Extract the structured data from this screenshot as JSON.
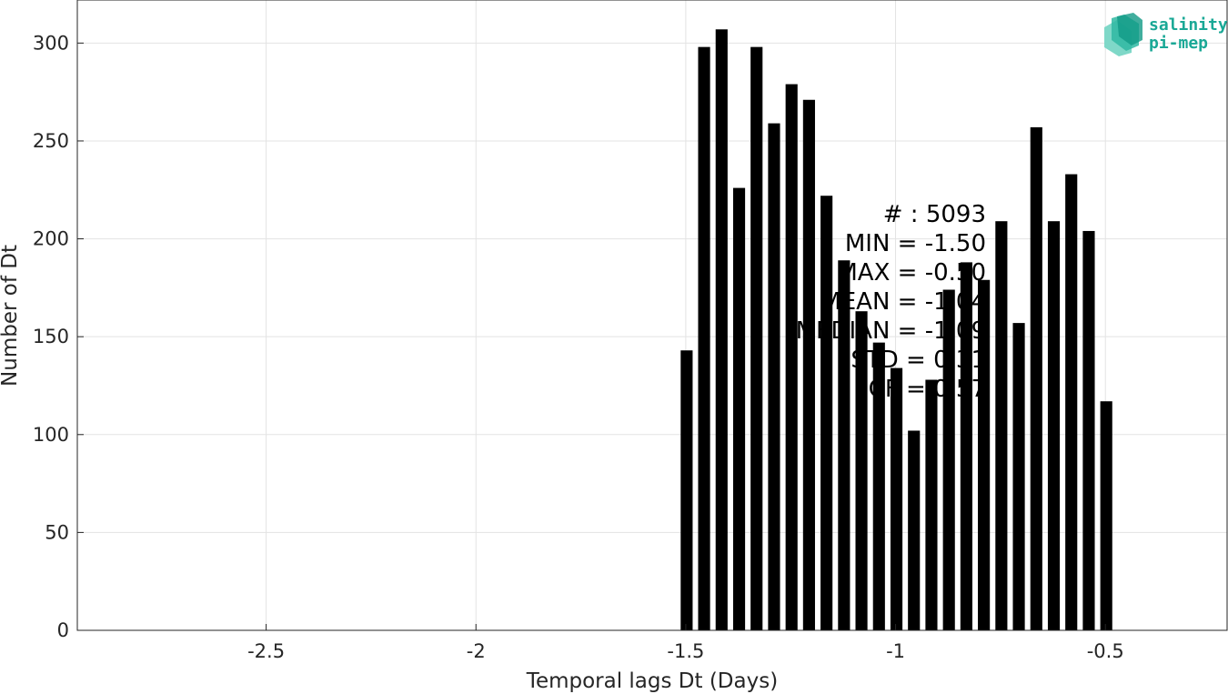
{
  "chart_data": {
    "type": "bar",
    "title": "",
    "xlabel": "Temporal lags Dt (Days)",
    "ylabel": "Number of Dt",
    "xlim": [
      -2.95,
      -0.21
    ],
    "ylim": [
      0,
      322
    ],
    "x_ticks": [
      -2.5,
      -2,
      -1.5,
      -1,
      -0.5
    ],
    "x_tick_labels": [
      "-2.5",
      "-2",
      "-1.5",
      "-1",
      "-0.5"
    ],
    "y_ticks": [
      0,
      50,
      100,
      150,
      200,
      250,
      300
    ],
    "y_tick_labels": [
      "0",
      "50",
      "100",
      "150",
      "200",
      "250",
      "300"
    ],
    "grid": true,
    "bar_color": "#000000",
    "bar_width": 0.0285,
    "x": [
      -1.4979,
      -1.4563,
      -1.4146,
      -1.3729,
      -1.3313,
      -1.2896,
      -1.2479,
      -1.2063,
      -1.1646,
      -1.1229,
      -1.0813,
      -1.0396,
      -0.9979,
      -0.9563,
      -0.9146,
      -0.8729,
      -0.8313,
      -0.7896,
      -0.7479,
      -0.7063,
      -0.6646,
      -0.6229,
      -0.5813,
      -0.5396,
      -0.4979
    ],
    "values": [
      143,
      298,
      307,
      226,
      298,
      259,
      279,
      271,
      222,
      189,
      163,
      147,
      134,
      102,
      128,
      174,
      188,
      179,
      209,
      157,
      257,
      209,
      233,
      204,
      117
    ],
    "stats": {
      "lines": [
        "# : 5093",
        "MIN = -1.50",
        "MAX =  -0.50",
        "MEAN = -1.04",
        "MEDIAN = -1.09",
        "STD = 0.31",
        "CF = 0.57"
      ]
    }
  },
  "logo": {
    "line1": "salinity",
    "line2": "pi-mep",
    "color": "#1aa896"
  }
}
